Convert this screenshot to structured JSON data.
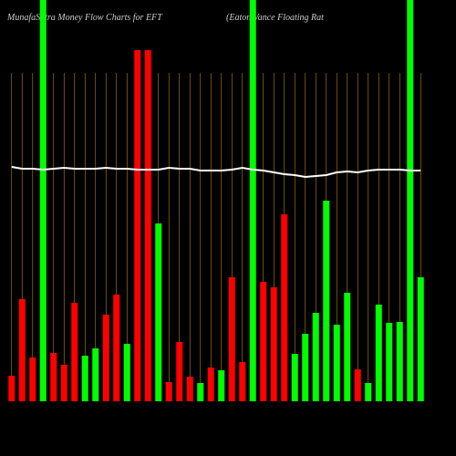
{
  "chart_data": {
    "type": "bar",
    "title": "MunafaSutra  Money Flow  Charts for EFT",
    "subtitle": "(Eaton Vance  Floating Rat",
    "values": [
      28,
      112,
      48,
      440,
      53,
      40,
      108,
      50,
      58,
      95,
      117,
      63,
      385,
      385,
      195,
      21,
      65,
      27,
      20,
      37,
      34,
      136,
      43,
      440,
      131,
      125,
      205,
      52,
      74,
      97,
      220,
      84,
      119,
      35,
      20,
      106,
      86,
      87,
      440,
      136
    ],
    "colors": [
      "#ff0000",
      "#ff0000",
      "#ff0000",
      "#00ff00",
      "#ff0000",
      "#ff0000",
      "#ff0000",
      "#00ff00",
      "#00ff00",
      "#ff0000",
      "#ff0000",
      "#00ff00",
      "#ff0000",
      "#ff0000",
      "#00ff00",
      "#ff0000",
      "#ff0000",
      "#ff0000",
      "#00ff00",
      "#ff0000",
      "#00ff00",
      "#ff0000",
      "#ff0000",
      "#00ff00",
      "#ff0000",
      "#ff0000",
      "#ff0000",
      "#00ff00",
      "#00ff00",
      "#00ff00",
      "#00ff00",
      "#00ff00",
      "#00ff00",
      "#ff0000",
      "#00ff00",
      "#00ff00",
      "#00ff00",
      "#00ff00",
      "#00ff00",
      "#00ff00"
    ],
    "line_values": [
      257,
      255,
      255,
      254,
      255,
      256,
      255,
      255,
      255,
      256,
      255,
      255,
      254,
      254,
      254,
      256,
      255,
      255,
      253,
      253,
      253,
      254,
      256,
      254,
      253,
      251,
      249,
      248,
      246,
      247,
      248,
      251,
      252,
      251,
      253,
      254,
      254,
      254,
      253,
      253
    ],
    "line_color": "#ffffff",
    "grid_color": "#b8860b",
    "ylim": [
      0,
      440
    ]
  }
}
